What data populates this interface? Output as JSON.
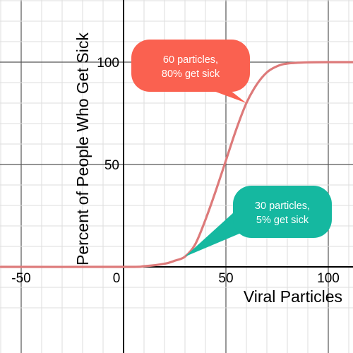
{
  "chart_data": {
    "type": "line",
    "xlabel": "Viral Particles",
    "ylabel": "Percent of People Who Get Sick",
    "xlim": [
      -60,
      112
    ],
    "ylim": [
      -22,
      130
    ],
    "grid": true,
    "x_ticks": [
      {
        "value": -50,
        "label": "-50"
      },
      {
        "value": 0,
        "label": "0"
      },
      {
        "value": 50,
        "label": "50"
      },
      {
        "value": 100,
        "label": "100"
      }
    ],
    "y_ticks": [
      {
        "value": 50,
        "label": "50"
      },
      {
        "value": 100,
        "label": "100"
      }
    ],
    "series": [
      {
        "color": "#dd7a7a",
        "x": [
          -60,
          0,
          10,
          20,
          25,
          30,
          35,
          40,
          45,
          50,
          55,
          60,
          65,
          70,
          75,
          80,
          90,
          100,
          112
        ],
        "y": [
          0,
          0,
          0.3,
          1.5,
          3,
          5,
          11,
          23,
          37,
          52,
          67,
          80,
          89,
          95,
          98,
          99.3,
          99.9,
          100,
          100
        ]
      }
    ],
    "annotations": [
      {
        "text": [
          "60 particles,",
          "80% get sick"
        ],
        "point": {
          "x": 60,
          "y": 80
        },
        "color": "#fa6150"
      },
      {
        "text": [
          "30 particles,",
          "5% get sick"
        ],
        "point": {
          "x": 30,
          "y": 5
        },
        "color": "#15b8a0"
      }
    ]
  },
  "colors": {
    "grid_minor": "#dddddd",
    "grid_major": "#555555",
    "axis": "#000000"
  }
}
